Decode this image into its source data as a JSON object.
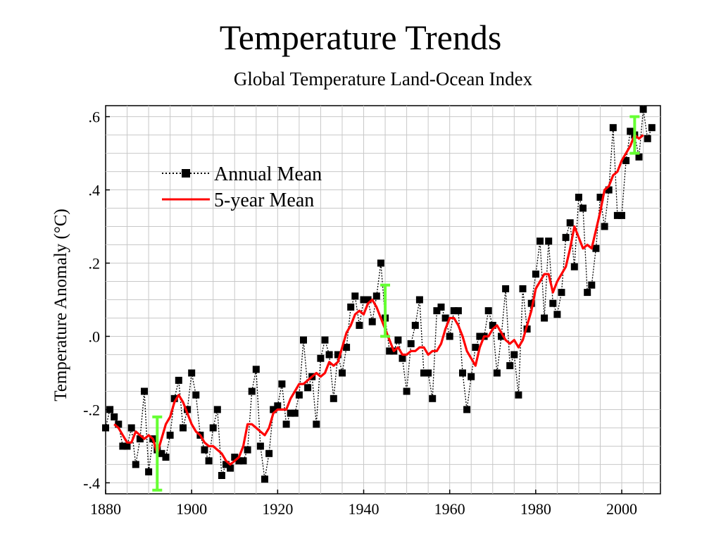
{
  "slide": {
    "title": "Temperature Trends"
  },
  "chart_data": {
    "type": "line",
    "title": "Global Temperature Land-Ocean Index",
    "xlabel": "",
    "ylabel": "Temperature Anomaly (°C)",
    "xlim": [
      1880,
      2009
    ],
    "ylim": [
      -0.43,
      0.63
    ],
    "xticks": [
      1880,
      1900,
      1920,
      1940,
      1960,
      1980,
      2000
    ],
    "yticks": [
      -0.4,
      -0.2,
      0.0,
      0.2,
      0.4,
      0.6
    ],
    "ytick_labels": [
      "-.4",
      "-.2",
      ".0",
      ".2",
      ".4",
      ".6"
    ],
    "grid": true,
    "legend_position": "upper-left",
    "colors": {
      "annual": "#000000",
      "five_year": "#ff0000",
      "error_bars": "#66ff33"
    },
    "series": [
      {
        "name": "Annual Mean",
        "style": "dotted-with-square-markers",
        "x": [
          1880,
          1881,
          1882,
          1883,
          1884,
          1885,
          1886,
          1887,
          1888,
          1889,
          1890,
          1891,
          1892,
          1893,
          1894,
          1895,
          1896,
          1897,
          1898,
          1899,
          1900,
          1901,
          1902,
          1903,
          1904,
          1905,
          1906,
          1907,
          1908,
          1909,
          1910,
          1911,
          1912,
          1913,
          1914,
          1915,
          1916,
          1917,
          1918,
          1919,
          1920,
          1921,
          1922,
          1923,
          1924,
          1925,
          1926,
          1927,
          1928,
          1929,
          1930,
          1931,
          1932,
          1933,
          1934,
          1935,
          1936,
          1937,
          1938,
          1939,
          1940,
          1941,
          1942,
          1943,
          1944,
          1945,
          1946,
          1947,
          1948,
          1949,
          1950,
          1951,
          1952,
          1953,
          1954,
          1955,
          1956,
          1957,
          1958,
          1959,
          1960,
          1961,
          1962,
          1963,
          1964,
          1965,
          1966,
          1967,
          1968,
          1969,
          1970,
          1971,
          1972,
          1973,
          1974,
          1975,
          1976,
          1977,
          1978,
          1979,
          1980,
          1981,
          1982,
          1983,
          1984,
          1985,
          1986,
          1987,
          1988,
          1989,
          1990,
          1991,
          1992,
          1993,
          1994,
          1995,
          1996,
          1997,
          1998,
          1999,
          2000,
          2001,
          2002,
          2003,
          2004,
          2005,
          2006,
          2007
        ],
        "values": [
          -0.25,
          -0.2,
          -0.22,
          -0.24,
          -0.3,
          -0.3,
          -0.25,
          -0.35,
          -0.28,
          -0.15,
          -0.37,
          -0.28,
          -0.31,
          -0.32,
          -0.33,
          -0.27,
          -0.17,
          -0.12,
          -0.25,
          -0.2,
          -0.1,
          -0.16,
          -0.27,
          -0.31,
          -0.34,
          -0.25,
          -0.2,
          -0.38,
          -0.35,
          -0.36,
          -0.33,
          -0.34,
          -0.34,
          -0.31,
          -0.15,
          -0.09,
          -0.3,
          -0.39,
          -0.32,
          -0.2,
          -0.19,
          -0.13,
          -0.24,
          -0.21,
          -0.21,
          -0.16,
          -0.01,
          -0.14,
          -0.11,
          -0.24,
          -0.06,
          -0.01,
          -0.05,
          -0.17,
          -0.05,
          -0.1,
          -0.03,
          0.08,
          0.11,
          0.03,
          0.1,
          0.1,
          0.04,
          0.11,
          0.2,
          0.05,
          -0.04,
          -0.04,
          -0.01,
          -0.06,
          -0.15,
          -0.02,
          0.03,
          0.1,
          -0.1,
          -0.1,
          -0.17,
          0.07,
          0.08,
          0.05,
          0,
          0.07,
          0.07,
          -0.1,
          -0.2,
          -0.11,
          -0.03,
          0,
          0,
          0.07,
          0.03,
          -0.1,
          0,
          0.13,
          -0.08,
          -0.05,
          -0.16,
          0.13,
          0.02,
          0.09,
          0.17,
          0.26,
          0.05,
          0.26,
          0.09,
          0.06,
          0.12,
          0.27,
          0.31,
          0.19,
          0.38,
          0.35,
          0.12,
          0.14,
          0.24,
          0.38,
          0.3,
          0.4,
          0.57,
          0.33,
          0.33,
          0.48,
          0.56,
          0.55,
          0.49,
          0.62,
          0.54,
          0.57
        ]
      },
      {
        "name": "5-year Mean",
        "style": "solid",
        "x": [
          1882,
          1883,
          1884,
          1885,
          1886,
          1887,
          1888,
          1889,
          1890,
          1891,
          1892,
          1893,
          1894,
          1895,
          1896,
          1897,
          1898,
          1899,
          1900,
          1901,
          1902,
          1903,
          1904,
          1905,
          1906,
          1907,
          1908,
          1909,
          1910,
          1911,
          1912,
          1913,
          1914,
          1915,
          1916,
          1917,
          1918,
          1919,
          1920,
          1921,
          1922,
          1923,
          1924,
          1925,
          1926,
          1927,
          1928,
          1929,
          1930,
          1931,
          1932,
          1933,
          1934,
          1935,
          1936,
          1937,
          1938,
          1939,
          1940,
          1941,
          1942,
          1943,
          1944,
          1945,
          1946,
          1947,
          1948,
          1949,
          1950,
          1951,
          1952,
          1953,
          1954,
          1955,
          1956,
          1957,
          1958,
          1959,
          1960,
          1961,
          1962,
          1963,
          1964,
          1965,
          1966,
          1967,
          1968,
          1969,
          1970,
          1971,
          1972,
          1973,
          1974,
          1975,
          1976,
          1977,
          1978,
          1979,
          1980,
          1981,
          1982,
          1983,
          1984,
          1985,
          1986,
          1987,
          1988,
          1989,
          1990,
          1991,
          1992,
          1993,
          1994,
          1995,
          1996,
          1997,
          1998,
          1999,
          2000,
          2001,
          2002,
          2003,
          2004,
          2005
        ],
        "values": [
          -0.24,
          -0.25,
          -0.27,
          -0.29,
          -0.29,
          -0.26,
          -0.27,
          -0.28,
          -0.27,
          -0.28,
          -0.32,
          -0.28,
          -0.24,
          -0.22,
          -0.18,
          -0.16,
          -0.18,
          -0.21,
          -0.24,
          -0.26,
          -0.27,
          -0.29,
          -0.3,
          -0.3,
          -0.31,
          -0.32,
          -0.34,
          -0.35,
          -0.34,
          -0.33,
          -0.3,
          -0.24,
          -0.24,
          -0.25,
          -0.26,
          -0.27,
          -0.25,
          -0.21,
          -0.2,
          -0.2,
          -0.2,
          -0.17,
          -0.15,
          -0.13,
          -0.13,
          -0.12,
          -0.11,
          -0.1,
          -0.11,
          -0.1,
          -0.07,
          -0.08,
          -0.07,
          -0.03,
          0.01,
          0.03,
          0.06,
          0.07,
          0.06,
          0.09,
          0.1,
          0.08,
          0.05,
          0.02,
          -0.01,
          -0.04,
          -0.03,
          -0.05,
          -0.05,
          -0.04,
          -0.04,
          -0.03,
          -0.03,
          -0.05,
          -0.04,
          -0.04,
          -0.02,
          0.02,
          0.05,
          0.05,
          0.03,
          0,
          -0.04,
          -0.06,
          -0.08,
          -0.03,
          0,
          0,
          0.02,
          0.03,
          0.01,
          -0.01,
          -0.02,
          -0.01,
          -0.03,
          -0.01,
          0.03,
          0.07,
          0.13,
          0.15,
          0.17,
          0.17,
          0.12,
          0.15,
          0.17,
          0.19,
          0.24,
          0.3,
          0.27,
          0.24,
          0.25,
          0.24,
          0.29,
          0.34,
          0.4,
          0.41,
          0.44,
          0.45,
          0.48,
          0.5,
          0.52,
          0.55,
          0.54,
          0.55
        ]
      }
    ],
    "error_bars": [
      {
        "x": 1892,
        "low": -0.42,
        "high": -0.22
      },
      {
        "x": 1945,
        "low": 0.0,
        "high": 0.14
      },
      {
        "x": 2003,
        "low": 0.5,
        "high": 0.6
      }
    ],
    "legend": [
      {
        "label": "Annual Mean",
        "style": "dotted-with-square-markers"
      },
      {
        "label": "5-year Mean",
        "style": "solid"
      }
    ]
  }
}
